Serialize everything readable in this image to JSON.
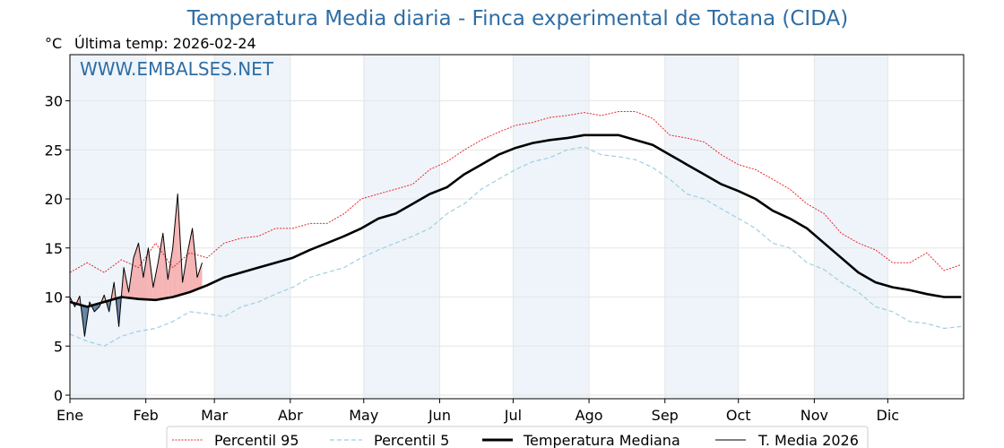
{
  "header": {
    "title": "Temperatura Media diaria - Finca experimental de Totana (CIDA)",
    "unit": "°C",
    "last_temp": "Última temp: 2026-02-24",
    "watermark": "WWW.EMBALSES.NET"
  },
  "chart_data": {
    "type": "line",
    "title": "Temperatura Media diaria - Finca experimental de Totana (CIDA)",
    "ylabel": "°C",
    "ylim": [
      0,
      34
    ],
    "y_ticks": [
      0,
      5,
      10,
      15,
      20,
      25,
      30
    ],
    "x_tick_labels": [
      "Ene",
      "Feb",
      "Mar",
      "Abr",
      "May",
      "Jun",
      "Jul",
      "Ago",
      "Sep",
      "Oct",
      "Nov",
      "Dic"
    ],
    "month_start_days": [
      1,
      32,
      60,
      91,
      121,
      152,
      182,
      213,
      244,
      274,
      305,
      335
    ],
    "xlim": [
      1,
      366
    ],
    "grid": true,
    "legend_position": "bottom",
    "colors": {
      "p95": "#e8262a",
      "p5": "#9fcfe0",
      "median": "#000000",
      "current": "#000000",
      "above": "#f4a7a7",
      "below": "#4a6f95",
      "band": "#eef4fa"
    },
    "series": [
      {
        "name": "Percentil 95",
        "style": "dotted",
        "x": [
          1,
          8,
          15,
          22,
          29,
          36,
          43,
          50,
          57,
          64,
          71,
          78,
          85,
          92,
          99,
          106,
          113,
          120,
          127,
          134,
          141,
          148,
          155,
          162,
          169,
          176,
          183,
          190,
          197,
          204,
          211,
          218,
          225,
          232,
          239,
          246,
          253,
          260,
          267,
          274,
          281,
          288,
          295,
          302,
          309,
          316,
          323,
          330,
          337,
          344,
          351,
          358,
          365
        ],
        "y": [
          12.5,
          13.5,
          12.5,
          13.8,
          13.0,
          15.5,
          13.0,
          14.5,
          14.0,
          15.5,
          16.0,
          16.2,
          17.0,
          17.0,
          17.5,
          17.5,
          18.5,
          20.0,
          20.5,
          21.0,
          21.5,
          23.0,
          23.8,
          25.0,
          26.0,
          26.8,
          27.5,
          27.8,
          28.3,
          28.5,
          28.8,
          28.5,
          28.9,
          28.9,
          28.2,
          26.5,
          26.2,
          25.8,
          24.5,
          23.5,
          23.0,
          22.0,
          21.0,
          19.5,
          18.5,
          16.5,
          15.5,
          14.8,
          13.5,
          13.5,
          14.5,
          12.7,
          13.3
        ]
      },
      {
        "name": "Percentil 5",
        "style": "dashed",
        "x": [
          1,
          8,
          15,
          22,
          29,
          36,
          43,
          50,
          57,
          64,
          71,
          78,
          85,
          92,
          99,
          106,
          113,
          120,
          127,
          134,
          141,
          148,
          155,
          162,
          169,
          176,
          183,
          190,
          197,
          204,
          211,
          218,
          225,
          232,
          239,
          246,
          253,
          260,
          267,
          274,
          281,
          288,
          295,
          302,
          309,
          316,
          323,
          330,
          337,
          344,
          351,
          358,
          365
        ],
        "y": [
          6.2,
          5.5,
          5.0,
          6.0,
          6.5,
          6.8,
          7.5,
          8.5,
          8.3,
          8.0,
          9.0,
          9.5,
          10.3,
          11.0,
          12.0,
          12.5,
          13.0,
          14.0,
          14.8,
          15.5,
          16.2,
          17.0,
          18.5,
          19.5,
          21.0,
          22.0,
          23.0,
          23.8,
          24.2,
          25.0,
          25.3,
          24.5,
          24.3,
          24.0,
          23.2,
          22.0,
          20.5,
          20.0,
          19.0,
          18.0,
          17.0,
          15.5,
          15.0,
          13.5,
          12.8,
          11.5,
          10.5,
          9.0,
          8.5,
          7.5,
          7.3,
          6.8,
          7.0
        ]
      },
      {
        "name": "Temperatura Mediana",
        "style": "solid-thick",
        "x": [
          1,
          8,
          15,
          22,
          29,
          36,
          43,
          50,
          57,
          64,
          71,
          78,
          85,
          92,
          99,
          106,
          113,
          120,
          127,
          134,
          141,
          148,
          155,
          162,
          169,
          176,
          183,
          190,
          197,
          204,
          211,
          218,
          225,
          232,
          239,
          246,
          253,
          260,
          267,
          274,
          281,
          288,
          295,
          302,
          309,
          316,
          323,
          330,
          337,
          344,
          351,
          358,
          365
        ],
        "y": [
          9.5,
          9.0,
          9.5,
          10.0,
          9.8,
          9.7,
          10.0,
          10.5,
          11.2,
          12.0,
          12.5,
          13.0,
          13.5,
          14.0,
          14.8,
          15.5,
          16.2,
          17.0,
          18.0,
          18.5,
          19.5,
          20.5,
          21.2,
          22.5,
          23.5,
          24.5,
          25.2,
          25.7,
          26.0,
          26.2,
          26.5,
          26.5,
          26.5,
          26.0,
          25.5,
          24.5,
          23.5,
          22.5,
          21.5,
          20.8,
          20.0,
          18.8,
          18.0,
          17.0,
          15.5,
          14.0,
          12.5,
          11.5,
          11.0,
          10.7,
          10.3,
          10.0,
          10.0
        ]
      },
      {
        "name": "T. Media 2026",
        "style": "solid-thin",
        "x": [
          1,
          3,
          5,
          7,
          9,
          11,
          13,
          15,
          17,
          19,
          21,
          23,
          25,
          27,
          29,
          31,
          33,
          35,
          37,
          39,
          41,
          43,
          45,
          47,
          49,
          51,
          53,
          55
        ],
        "y": [
          10.0,
          9.0,
          10.1,
          6.0,
          9.5,
          8.5,
          9.0,
          10.2,
          8.5,
          11.5,
          7.0,
          13.0,
          10.5,
          14.0,
          15.5,
          12.0,
          15.0,
          11.0,
          13.5,
          16.5,
          11.8,
          15.0,
          20.5,
          11.5,
          14.5,
          17.0,
          12.0,
          13.5
        ]
      }
    ]
  },
  "legend": {
    "p95": "Percentil 95",
    "p5": "Percentil 5",
    "median": "Temperatura Mediana",
    "current": "T. Media 2026"
  }
}
